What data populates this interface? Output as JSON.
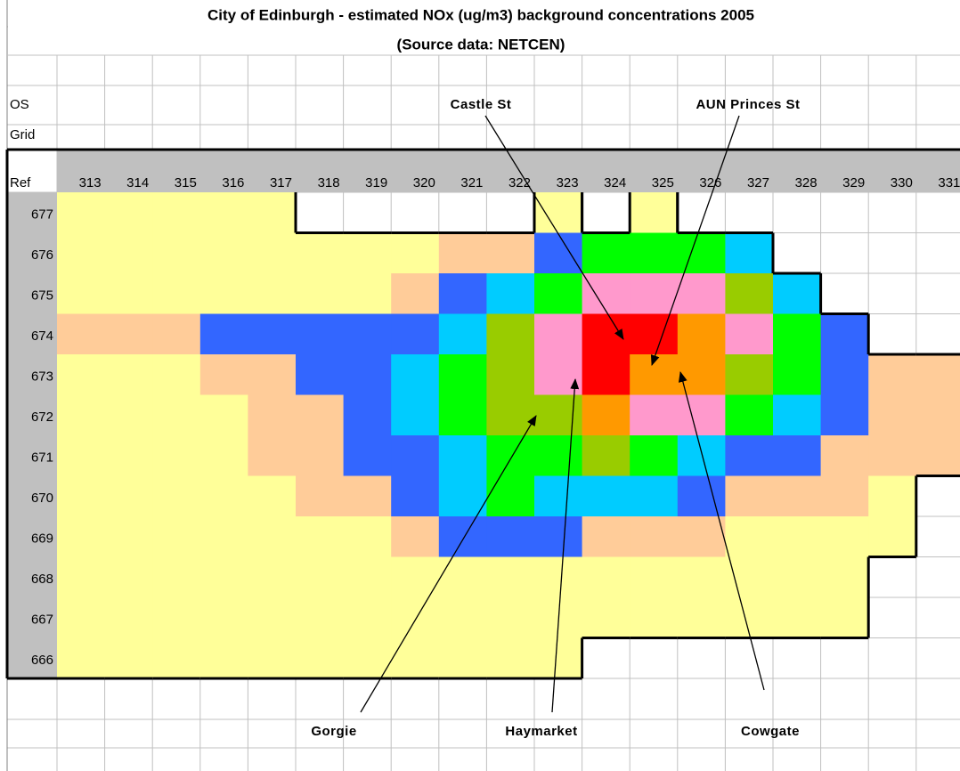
{
  "sheet": {
    "title": "City of Edinburgh - estimated NOx (ug/m3) background concentrations 2005",
    "subtitle": "(Source data: NETCEN)",
    "side_labels": [
      "OS",
      "Grid",
      "Ref"
    ],
    "columns": [
      313,
      314,
      315,
      316,
      317,
      318,
      319,
      320,
      321,
      322,
      323,
      324,
      325,
      326,
      327,
      328,
      329,
      330,
      331
    ],
    "rows": [
      677,
      676,
      675,
      674,
      673,
      672,
      671,
      670,
      669,
      668,
      667,
      666
    ],
    "colors": {
      "Y": "#ffff99",
      "P": "#ffcc99",
      "B": "#3366ff",
      "C": "#00ccff",
      "G": "#00ff00",
      "O": "#99cc00",
      "K": "#ff99cc",
      "R": "#ff0000",
      "A": "#ff9900"
    },
    "cells": [
      "YYYYYWWWWWYWYWWWWWW",
      "YYYYYYYYPPBGGGCWWWW",
      "YYYYYYYPBCGKKKOCWWW",
      "PPPBBBBBCOKRRAKGBWW",
      "YYYPPBBCGOKRAAOGBPP",
      "YYYYPPBCGOOAKKGCBPP",
      "YYYYPPBBCGGOGCBBPPP",
      "YYYYYPPBCGCCCBPPPYW",
      "YYYYYYYPBBBPPPYYYYW",
      "YYYYYYYYYYYYYYYYYWW",
      "YYYYYYYYYYYYYYYYYWW",
      "YYYYYYYYYYYWWWWWWWW"
    ],
    "annotations": [
      "Castle St",
      "AUN Princes St",
      "Gorgie",
      "Haymarket",
      "Cowgate"
    ]
  }
}
